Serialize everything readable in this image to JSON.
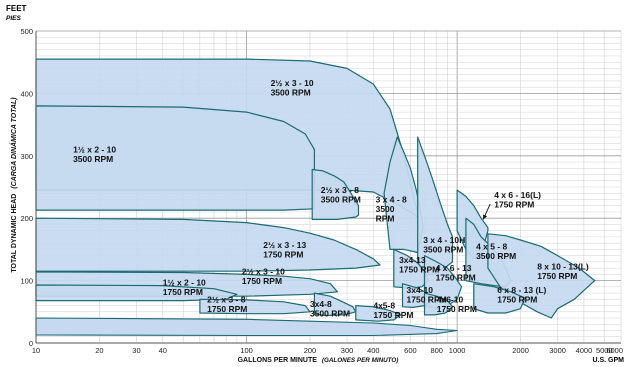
{
  "chart_data": {
    "type": "area",
    "title": "",
    "y_unit": "FEET",
    "y_unit_es": "PIES",
    "ylabel": "TOTAL DYNAMIC HEAD",
    "ylabel_es": "(CARGA DINÁMICA TOTAL)",
    "xlabel": "GALLONS PER MINUTE",
    "xlabel_es": "(GALONES PER MINUTO)",
    "x_unit": "U.S. GPM",
    "x_scale": "log",
    "xlim": [
      10,
      6000
    ],
    "ylim": [
      0,
      500
    ],
    "grid": true,
    "x_ticks": [
      10,
      20,
      30,
      40,
      100,
      200,
      300,
      400,
      600,
      800,
      1000,
      2000,
      3000,
      4000,
      5000,
      6000
    ],
    "x_tick_labels": [
      "10",
      "20",
      "30",
      "40",
      "100",
      "200",
      "300",
      "400",
      "600",
      "800",
      "1000",
      "2000",
      "3000",
      "4000",
      "5000",
      "6000"
    ],
    "y_ticks": [
      0,
      100,
      200,
      300,
      400,
      500
    ],
    "y_tick_labels": [
      "0",
      "100",
      "200",
      "300",
      "400",
      "500"
    ],
    "fill_color": "#c6d9f0",
    "outline_color": "#1a6b72",
    "series": [
      {
        "name": "2½ x 3 - 10\n3500 RPM",
        "label_at": [
          130,
          412
        ],
        "outline": [
          [
            10,
            455
          ],
          [
            100,
            455
          ],
          [
            200,
            452
          ],
          [
            300,
            440
          ],
          [
            400,
            415
          ],
          [
            480,
            375
          ],
          [
            560,
            300
          ],
          [
            620,
            235
          ],
          [
            660,
            200
          ],
          [
            600,
            210
          ],
          [
            500,
            225
          ],
          [
            400,
            242
          ],
          [
            300,
            245
          ],
          [
            200,
            245
          ],
          [
            100,
            245
          ],
          [
            10,
            245
          ]
        ]
      },
      {
        "name": "1½ x 2 - 10\n3500 RPM",
        "label_at": [
          15,
          305
        ],
        "outline": [
          [
            10,
            380
          ],
          [
            50,
            378
          ],
          [
            100,
            370
          ],
          [
            150,
            355
          ],
          [
            190,
            335
          ],
          [
            210,
            310
          ],
          [
            210,
            215
          ],
          [
            150,
            213
          ],
          [
            100,
            213
          ],
          [
            10,
            213
          ]
        ]
      },
      {
        "name": "2½ x 3 - 13\n1750 RPM",
        "label_at": [
          120,
          152
        ],
        "outline": [
          [
            10,
            200
          ],
          [
            50,
            198
          ],
          [
            100,
            193
          ],
          [
            150,
            185
          ],
          [
            200,
            176
          ],
          [
            260,
            165
          ],
          [
            330,
            150
          ],
          [
            400,
            135
          ],
          [
            430,
            125
          ],
          [
            330,
            120
          ],
          [
            200,
            117
          ],
          [
            100,
            115
          ],
          [
            10,
            115
          ]
        ]
      },
      {
        "name": "2½ x 3 - 8\n3500 RPM",
        "label_at": [
          225,
          240
        ],
        "outline": [
          [
            205,
            278
          ],
          [
            230,
            276
          ],
          [
            260,
            268
          ],
          [
            290,
            258
          ],
          [
            320,
            235
          ],
          [
            340,
            220
          ],
          [
            340,
            205
          ],
          [
            330,
            202
          ],
          [
            270,
            198
          ],
          [
            205,
            198
          ]
        ]
      },
      {
        "name": "3 x 4 - 8\n3500\nRPM",
        "label_at": [
          410,
          225
        ],
        "outline": [
          [
            520,
            330
          ],
          [
            560,
            305
          ],
          [
            600,
            280
          ],
          [
            640,
            245
          ],
          [
            680,
            200
          ],
          [
            690,
            185
          ],
          [
            650,
            145
          ],
          [
            560,
            150
          ],
          [
            480,
            150
          ],
          [
            450,
            240
          ],
          [
            480,
            290
          ]
        ]
      },
      {
        "name": "3 x 4 - 10H\n3500 RPM",
        "label_at": [
          690,
          160
        ],
        "outline": [
          [
            650,
            330
          ],
          [
            700,
            300
          ],
          [
            760,
            265
          ],
          [
            830,
            225
          ],
          [
            900,
            190
          ],
          [
            950,
            170
          ],
          [
            950,
            130
          ],
          [
            870,
            120
          ],
          [
            780,
            110
          ],
          [
            700,
            110
          ],
          [
            650,
            130
          ]
        ]
      },
      {
        "name": "4 x 6 - 16(L)\n1750 RPM",
        "label_at": [
          1500,
          232
        ],
        "outline": [
          [
            1000,
            245
          ],
          [
            1100,
            235
          ],
          [
            1200,
            220
          ],
          [
            1300,
            200
          ],
          [
            1400,
            185
          ],
          [
            1400,
            180
          ],
          [
            1300,
            140
          ],
          [
            1200,
            135
          ],
          [
            1100,
            150
          ],
          [
            1000,
            180
          ]
        ]
      },
      {
        "name": "4 x 5 - 8\n3500 RPM",
        "label_at": [
          1230,
          150
        ],
        "outline": [
          [
            1100,
            200
          ],
          [
            1200,
            190
          ],
          [
            1300,
            170
          ],
          [
            1500,
            150
          ],
          [
            1650,
            130
          ],
          [
            1800,
            100
          ],
          [
            1700,
            90
          ],
          [
            1500,
            92
          ],
          [
            1300,
            95
          ],
          [
            1100,
            100
          ]
        ]
      },
      {
        "name": "8 x 10 - 13(L)\n1750 RPM",
        "label_at": [
          2400,
          118
        ],
        "outline": [
          [
            1400,
            175
          ],
          [
            1700,
            172
          ],
          [
            2000,
            165
          ],
          [
            2500,
            155
          ],
          [
            3000,
            140
          ],
          [
            3800,
            120
          ],
          [
            4500,
            100
          ],
          [
            3600,
            70
          ],
          [
            3000,
            55
          ],
          [
            2800,
            40
          ],
          [
            2400,
            50
          ],
          [
            2000,
            65
          ],
          [
            1600,
            90
          ],
          [
            1400,
            120
          ]
        ]
      },
      {
        "name": "2½ x 3 - 10\n1750 RPM",
        "label_at": [
          95,
          110
        ],
        "outline": [
          [
            10,
            114
          ],
          [
            50,
            113
          ],
          [
            100,
            110
          ],
          [
            150,
            107
          ],
          [
            200,
            103
          ],
          [
            250,
            95
          ],
          [
            270,
            82
          ],
          [
            200,
            78
          ],
          [
            100,
            75
          ],
          [
            10,
            75
          ]
        ]
      },
      {
        "name": "1½ x 2 - 10\n1750 RPM",
        "label_at": [
          40,
          92
        ],
        "outline": [
          [
            10,
            93
          ],
          [
            40,
            92
          ],
          [
            70,
            87
          ],
          [
            90,
            78
          ],
          [
            80,
            70
          ],
          [
            50,
            68
          ],
          [
            10,
            68
          ]
        ]
      },
      {
        "name": "2½ x 3 - 8\n1750 RPM",
        "label_at": [
          65,
          65
        ],
        "outline": [
          [
            60,
            70
          ],
          [
            100,
            69
          ],
          [
            150,
            66
          ],
          [
            190,
            60
          ],
          [
            200,
            50
          ],
          [
            150,
            47
          ],
          [
            100,
            47
          ],
          [
            60,
            48
          ]
        ]
      },
      {
        "name": "3x4-8\n3500 RPM",
        "label_at": [
          200,
          58
        ],
        "outline": [
          [
            210,
            80
          ],
          [
            250,
            75
          ],
          [
            290,
            65
          ],
          [
            320,
            58
          ],
          [
            330,
            50
          ],
          [
            290,
            45
          ],
          [
            240,
            44
          ],
          [
            210,
            46
          ]
        ]
      },
      {
        "name": "3x4-13\n1750 RPM",
        "label_at": [
          530,
          128
        ],
        "outline": [
          [
            500,
            150
          ],
          [
            580,
            140
          ],
          [
            650,
            128
          ],
          [
            700,
            115
          ],
          [
            730,
            100
          ],
          [
            680,
            90
          ],
          [
            600,
            88
          ],
          [
            500,
            90
          ]
        ]
      },
      {
        "name": "4 x 6 - 13\n1750 RPM",
        "label_at": [
          790,
          115
        ],
        "outline": [
          [
            700,
            140
          ],
          [
            800,
            130
          ],
          [
            900,
            120
          ],
          [
            980,
            105
          ],
          [
            1050,
            90
          ],
          [
            1000,
            70
          ],
          [
            900,
            60
          ],
          [
            800,
            55
          ],
          [
            700,
            60
          ]
        ]
      },
      {
        "name": "3x4-10\n1750 RPM",
        "label_at": [
          575,
          80
        ],
        "outline": [
          [
            550,
            95
          ],
          [
            650,
            88
          ],
          [
            720,
            80
          ],
          [
            760,
            68
          ],
          [
            700,
            60
          ],
          [
            620,
            57
          ],
          [
            550,
            58
          ]
        ]
      },
      {
        "name": "4x5-8\n1750 RPM",
        "label_at": [
          400,
          55
        ],
        "outline": [
          [
            330,
            60
          ],
          [
            400,
            58
          ],
          [
            480,
            52
          ],
          [
            540,
            45
          ],
          [
            500,
            37
          ],
          [
            420,
            35
          ],
          [
            330,
            37
          ]
        ]
      },
      {
        "name": "4x6-10\n1750 RPM",
        "label_at": [
          800,
          65
        ],
        "outline": [
          [
            700,
            80
          ],
          [
            800,
            75
          ],
          [
            900,
            68
          ],
          [
            950,
            58
          ],
          [
            880,
            48
          ],
          [
            780,
            45
          ],
          [
            700,
            45
          ]
        ]
      },
      {
        "name": "6 x 8 - 13 (L)\n1750 RPM",
        "label_at": [
          1550,
          80
        ],
        "outline": [
          [
            1200,
            95
          ],
          [
            1500,
            90
          ],
          [
            1800,
            82
          ],
          [
            2100,
            72
          ],
          [
            2000,
            55
          ],
          [
            1700,
            48
          ],
          [
            1400,
            48
          ],
          [
            1200,
            55
          ]
        ]
      }
    ],
    "low_band": {
      "outline": [
        [
          10,
          40
        ],
        [
          100,
          38
        ],
        [
          200,
          35
        ],
        [
          400,
          32
        ],
        [
          600,
          28
        ],
        [
          800,
          22
        ],
        [
          1000,
          20
        ],
        [
          800,
          15
        ],
        [
          400,
          12
        ],
        [
          200,
          12
        ],
        [
          100,
          12
        ],
        [
          10,
          13
        ]
      ]
    },
    "annotation_arrow": {
      "from": [
        1500,
        226
      ],
      "to": [
        1330,
        198
      ]
    }
  }
}
